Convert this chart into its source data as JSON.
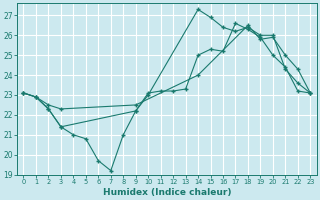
{
  "xlabel": "Humidex (Indice chaleur)",
  "bg_color": "#cce9ef",
  "grid_color": "#ffffff",
  "line_color": "#1a7a6e",
  "xlim": [
    -0.5,
    23.5
  ],
  "ylim": [
    19,
    27.6
  ],
  "yticks": [
    19,
    20,
    21,
    22,
    23,
    24,
    25,
    26,
    27
  ],
  "xticks": [
    0,
    1,
    2,
    3,
    4,
    5,
    6,
    7,
    8,
    9,
    10,
    11,
    12,
    13,
    14,
    15,
    16,
    17,
    18,
    19,
    20,
    21,
    22,
    23
  ],
  "line1_x": [
    0,
    1,
    2,
    3,
    4,
    5,
    6,
    7,
    8,
    9,
    10,
    11,
    12,
    13,
    14,
    15,
    16,
    17,
    18,
    19,
    20,
    21,
    22,
    23
  ],
  "line1_y": [
    23.1,
    22.9,
    22.3,
    21.4,
    21.0,
    20.8,
    19.7,
    19.2,
    21.0,
    22.2,
    23.1,
    23.2,
    23.2,
    23.3,
    25.0,
    25.3,
    25.2,
    26.6,
    26.3,
    25.9,
    25.0,
    24.4,
    23.2,
    23.1
  ],
  "line2_x": [
    0,
    1,
    2,
    3,
    9,
    10,
    14,
    15,
    16,
    17,
    18,
    19,
    20,
    21,
    22,
    23
  ],
  "line2_y": [
    23.1,
    22.9,
    22.3,
    21.4,
    22.2,
    23.0,
    27.3,
    26.9,
    26.4,
    26.2,
    26.4,
    26.0,
    26.0,
    24.3,
    23.6,
    23.1
  ],
  "line3_x": [
    0,
    1,
    2,
    3,
    9,
    14,
    18,
    19,
    20,
    21,
    22,
    23
  ],
  "line3_y": [
    23.1,
    22.9,
    22.5,
    22.3,
    22.5,
    24.0,
    26.5,
    25.8,
    25.9,
    25.0,
    24.3,
    23.1
  ]
}
